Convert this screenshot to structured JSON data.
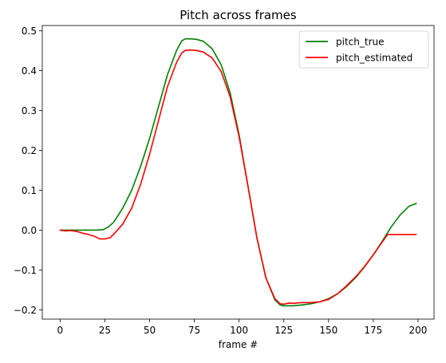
{
  "chart_data": {
    "type": "line",
    "title": "Pitch across frames",
    "xlabel": "frame #",
    "ylabel": "",
    "xlim": [
      -9.95,
      208.95
    ],
    "ylim": [
      -0.2234,
      0.5134
    ],
    "xticks": [
      0,
      25,
      50,
      75,
      100,
      125,
      150,
      175,
      200
    ],
    "xtick_labels": [
      "0",
      "25",
      "50",
      "75",
      "100",
      "125",
      "150",
      "175",
      "200"
    ],
    "yticks": [
      -0.2,
      -0.1,
      0.0,
      0.1,
      0.2,
      0.3,
      0.4,
      0.5
    ],
    "ytick_labels": [
      "−0.2",
      "−0.1",
      "0.0",
      "0.1",
      "0.2",
      "0.3",
      "0.4",
      "0.5"
    ],
    "grid": false,
    "legend_position": "top-right",
    "series": [
      {
        "name": "pitch_true",
        "color": "#008000",
        "x": [
          0,
          10,
          20,
          24,
          27,
          30,
          35,
          40,
          45,
          50,
          55,
          60,
          65,
          68,
          70,
          73,
          76,
          80,
          85,
          90,
          95,
          100,
          105,
          110,
          115,
          120,
          123,
          125,
          130,
          135,
          140,
          145,
          150,
          155,
          160,
          165,
          170,
          175,
          180,
          185,
          190,
          195,
          199
        ],
        "y": [
          0.0,
          0.0,
          0.0,
          0.001,
          0.008,
          0.02,
          0.055,
          0.1,
          0.16,
          0.23,
          0.31,
          0.39,
          0.45,
          0.475,
          0.48,
          0.48,
          0.479,
          0.474,
          0.455,
          0.415,
          0.345,
          0.24,
          0.11,
          -0.02,
          -0.12,
          -0.175,
          -0.188,
          -0.19,
          -0.19,
          -0.188,
          -0.185,
          -0.18,
          -0.172,
          -0.16,
          -0.142,
          -0.12,
          -0.093,
          -0.062,
          -0.028,
          0.008,
          0.038,
          0.06,
          0.067
        ]
      },
      {
        "name": "pitch_estimated",
        "color": "#ff0000",
        "x": [
          0,
          3,
          6,
          9,
          12,
          15,
          18,
          20,
          22,
          25,
          28,
          30,
          35,
          40,
          45,
          50,
          55,
          60,
          65,
          68,
          70,
          73,
          76,
          80,
          85,
          90,
          95,
          100,
          105,
          110,
          115,
          120,
          123,
          125,
          128,
          130,
          135,
          140,
          145,
          150,
          155,
          160,
          165,
          170,
          175,
          180,
          183,
          190,
          199
        ],
        "y": [
          0.0,
          -0.002,
          -0.001,
          -0.003,
          -0.007,
          -0.01,
          -0.014,
          -0.017,
          -0.022,
          -0.022,
          -0.019,
          -0.01,
          0.015,
          0.055,
          0.115,
          0.19,
          0.275,
          0.36,
          0.42,
          0.445,
          0.451,
          0.452,
          0.451,
          0.447,
          0.432,
          0.398,
          0.335,
          0.235,
          0.11,
          -0.02,
          -0.12,
          -0.172,
          -0.185,
          -0.186,
          -0.183,
          -0.184,
          -0.182,
          -0.182,
          -0.18,
          -0.174,
          -0.16,
          -0.14,
          -0.118,
          -0.092,
          -0.062,
          -0.03,
          -0.011,
          -0.011,
          -0.011
        ]
      }
    ]
  }
}
